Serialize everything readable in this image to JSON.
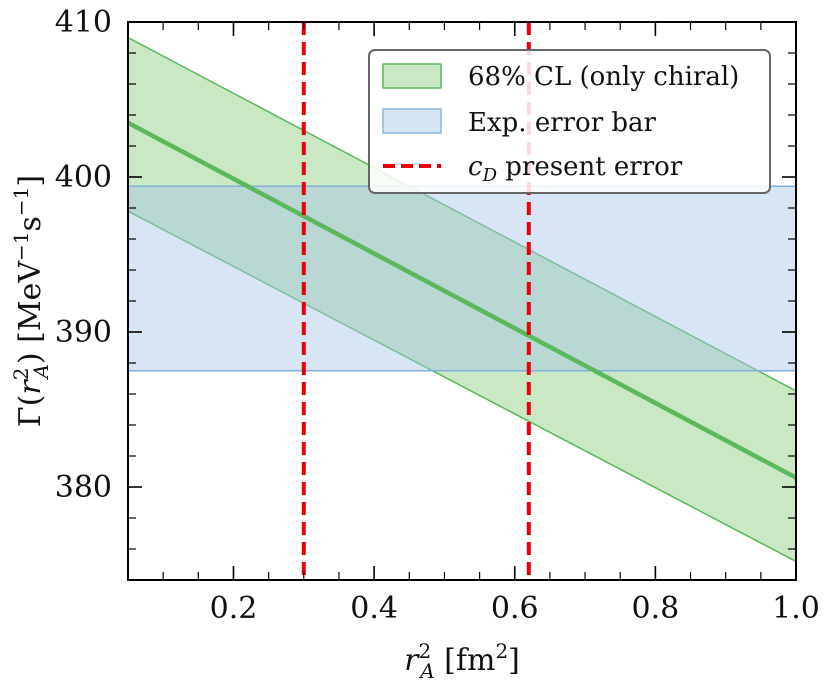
{
  "chart_data": {
    "type": "line",
    "xlabel": "r_A^2 [fm^2]",
    "ylabel": "Γ(r_A^2) [MeV^-1 s^-1]",
    "xlim": [
      0.05,
      1.0
    ],
    "ylim": [
      374,
      410
    ],
    "x_ticks": [
      0.2,
      0.4,
      0.6,
      0.8,
      1.0
    ],
    "x_tick_labels": [
      "0.2",
      "0.4",
      "0.6",
      "0.8",
      "1.0"
    ],
    "y_ticks": [
      380,
      390,
      400,
      410
    ],
    "y_tick_labels": [
      "380",
      "390",
      "400",
      "410"
    ],
    "series": [
      {
        "name": "68% CL (only chiral)",
        "kind": "band_with_central_line",
        "color": "#5cb85c",
        "x": [
          0.05,
          1.0
        ],
        "central": [
          403.5,
          380.6
        ],
        "upper": [
          409.0,
          386.2
        ],
        "lower": [
          397.8,
          375.2
        ]
      },
      {
        "name": "Exp. error bar",
        "kind": "horizontal_band",
        "color": "#a6c6e8",
        "y_range": [
          387.5,
          399.4
        ]
      },
      {
        "name": "c_D present error",
        "kind": "vertical_lines",
        "color": "#e8000b",
        "x": [
          0.3,
          0.62
        ]
      }
    ],
    "legend": {
      "position": "top-right",
      "entries": [
        {
          "label": "68% CL (only chiral)"
        },
        {
          "label": "Exp. error bar"
        },
        {
          "label_main": "c",
          "label_sub": "D",
          "label_rest": " present error"
        }
      ]
    }
  }
}
